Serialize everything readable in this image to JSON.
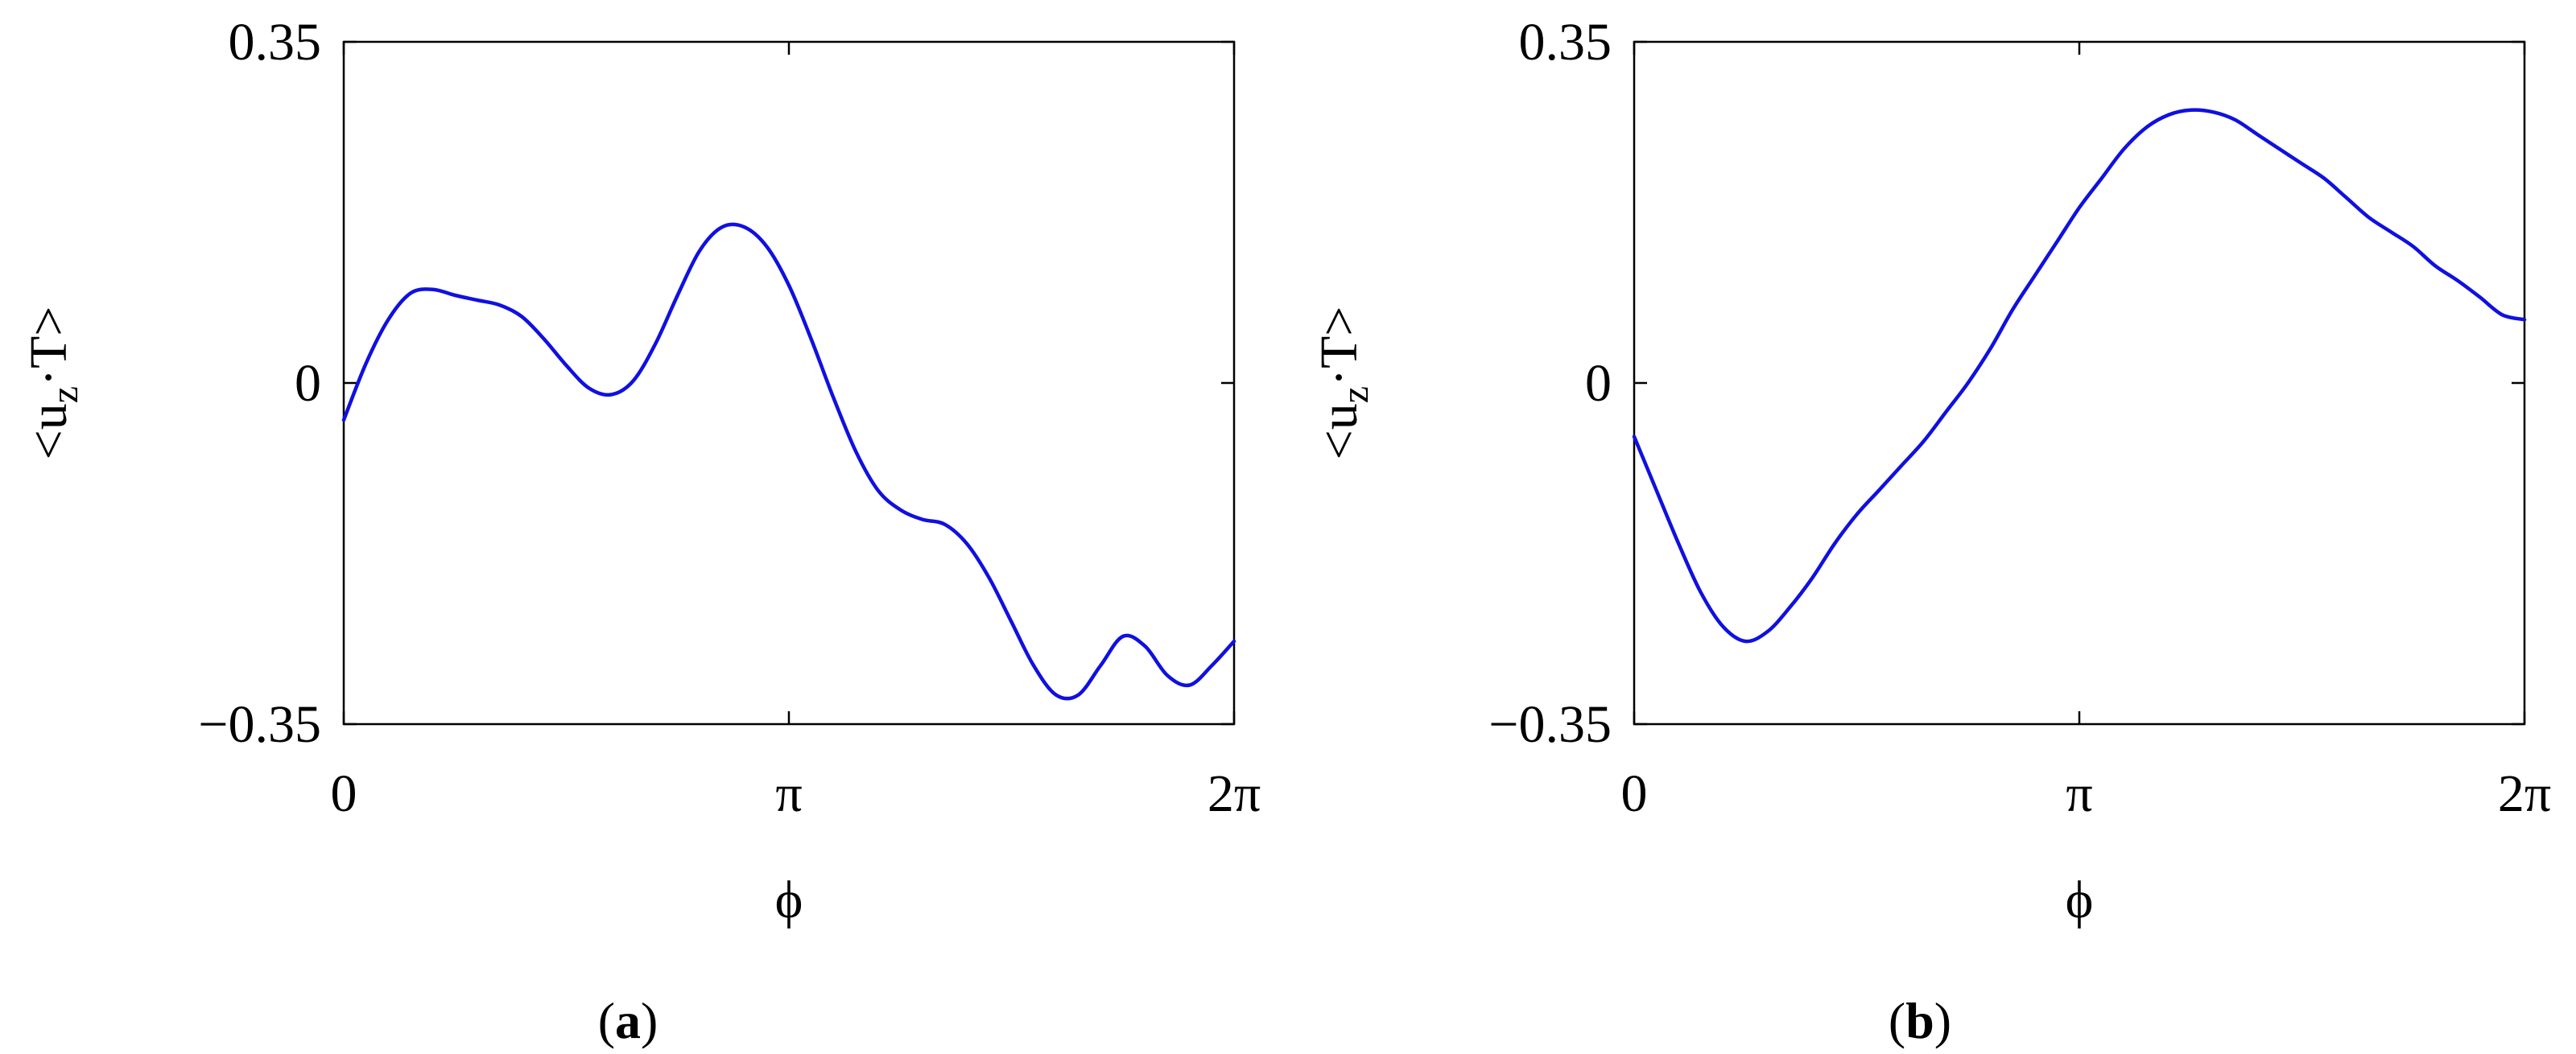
{
  "colors": {
    "series": "#1010e0",
    "axis": "#000000"
  },
  "chart_data": [
    {
      "type": "line",
      "caption": "a",
      "xlabel": "ϕ",
      "ylabel": "<u",
      "ylabel_sub": "z",
      "ylabel_tail": "·T>",
      "xlim": [
        0,
        6.2832
      ],
      "ylim": [
        -0.35,
        0.35
      ],
      "x_ticks": [
        {
          "value": 0,
          "label": "0"
        },
        {
          "value": 3.1416,
          "label": "π"
        },
        {
          "value": 6.2832,
          "label": "2π"
        }
      ],
      "y_ticks": [
        {
          "value": 0.35,
          "label": "0.35"
        },
        {
          "value": 0,
          "label": "0"
        },
        {
          "value": -0.35,
          "label": "−0.35"
        }
      ],
      "series": [
        {
          "x": [
            0,
            0.157,
            0.314,
            0.471,
            0.628,
            0.785,
            0.942,
            1.1,
            1.257,
            1.414,
            1.571,
            1.728,
            1.885,
            2.042,
            2.199,
            2.356,
            2.513,
            2.67,
            2.827,
            2.985,
            3.142,
            3.299,
            3.456,
            3.613,
            3.77,
            3.927,
            4.084,
            4.241,
            4.398,
            4.555,
            4.712,
            4.869,
            5.027,
            5.184,
            5.341,
            5.498,
            5.655,
            5.812,
            5.969,
            6.126,
            6.283
          ],
          "y": [
            -0.038,
            0.02,
            0.065,
            0.092,
            0.096,
            0.09,
            0.085,
            0.08,
            0.068,
            0.045,
            0.018,
            -0.005,
            -0.012,
            0.002,
            0.04,
            0.09,
            0.136,
            0.16,
            0.16,
            0.14,
            0.1,
            0.045,
            -0.015,
            -0.07,
            -0.11,
            -0.13,
            -0.14,
            -0.145,
            -0.165,
            -0.2,
            -0.245,
            -0.29,
            -0.32,
            -0.32,
            -0.29,
            -0.26,
            -0.27,
            -0.3,
            -0.31,
            -0.29,
            -0.265
          ]
        }
      ]
    },
    {
      "type": "line",
      "caption": "b",
      "xlabel": "ϕ",
      "ylabel": "<u",
      "ylabel_sub": "z",
      "ylabel_tail": "·T>",
      "xlim": [
        0,
        6.2832
      ],
      "ylim": [
        -0.35,
        0.35
      ],
      "x_ticks": [
        {
          "value": 0,
          "label": "0"
        },
        {
          "value": 3.1416,
          "label": "π"
        },
        {
          "value": 6.2832,
          "label": "2π"
        }
      ],
      "y_ticks": [
        {
          "value": 0.35,
          "label": "0.35"
        },
        {
          "value": 0,
          "label": "0"
        },
        {
          "value": -0.35,
          "label": "−0.35"
        }
      ],
      "series": [
        {
          "x": [
            0,
            0.157,
            0.314,
            0.471,
            0.628,
            0.785,
            0.942,
            1.1,
            1.257,
            1.414,
            1.571,
            1.728,
            1.885,
            2.042,
            2.199,
            2.356,
            2.513,
            2.67,
            2.827,
            2.985,
            3.142,
            3.299,
            3.456,
            3.613,
            3.77,
            3.927,
            4.084,
            4.241,
            4.398,
            4.555,
            4.712,
            4.869,
            5.027,
            5.184,
            5.341,
            5.498,
            5.655,
            5.812,
            5.969,
            6.126,
            6.283
          ],
          "y": [
            -0.055,
            -0.11,
            -0.165,
            -0.215,
            -0.25,
            -0.265,
            -0.255,
            -0.23,
            -0.2,
            -0.165,
            -0.135,
            -0.11,
            -0.085,
            -0.06,
            -0.03,
            0.0,
            0.035,
            0.075,
            0.11,
            0.145,
            0.18,
            0.21,
            0.24,
            0.262,
            0.275,
            0.28,
            0.278,
            0.27,
            0.255,
            0.24,
            0.225,
            0.21,
            0.19,
            0.17,
            0.155,
            0.14,
            0.12,
            0.105,
            0.088,
            0.07,
            0.065
          ]
        }
      ]
    }
  ]
}
